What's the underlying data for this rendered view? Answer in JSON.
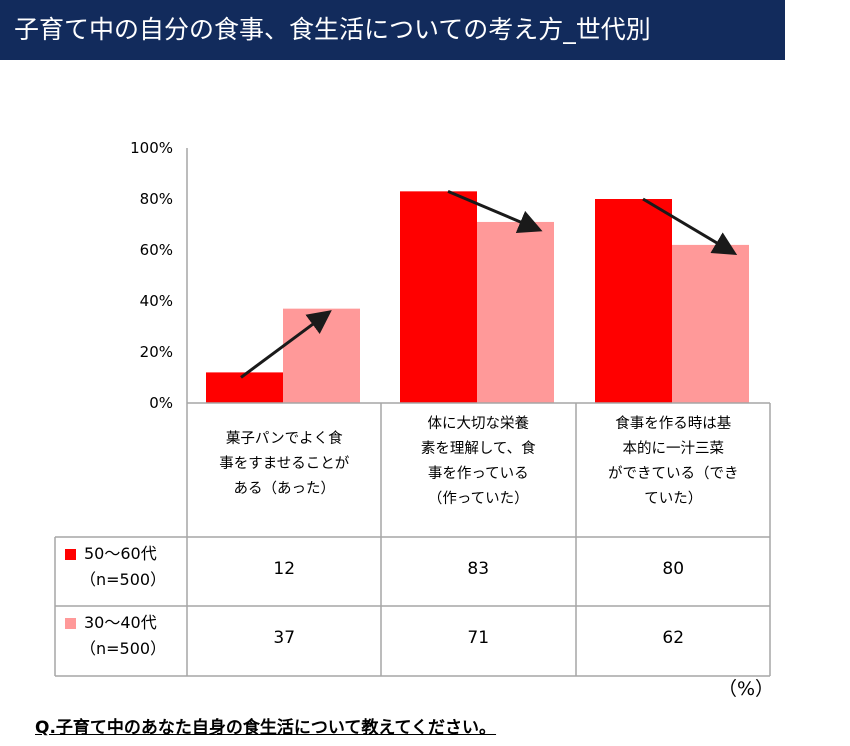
{
  "title": "子育て中の自分の食事、食生活についての考え方_世代別",
  "colors": {
    "title_bg": "#122b5c",
    "series1": "#ff0000",
    "series2": "#ff9999",
    "grid": "#a6a6a6",
    "arrow": "#1a1a1a"
  },
  "unit": "（%）",
  "question": "Q.子育て中のあなた自身の食生活について教えてください。",
  "table": {
    "categories": [
      [
        "菓子パンでよく食",
        "事をすませることが",
        "ある（あった）"
      ],
      [
        "体に大切な栄養",
        "素を理解して、食",
        "事を作っている",
        "（作っていた）"
      ],
      [
        "食事を作る時は基",
        "本的に一汁三菜",
        "ができている（でき",
        "ていた）"
      ]
    ],
    "rows": [
      {
        "label_lines": [
          "50～60代",
          "（n=500）"
        ],
        "values": [
          "12",
          "83",
          "80"
        ]
      },
      {
        "label_lines": [
          "30～40代",
          "（n=500）"
        ],
        "values": [
          "37",
          "71",
          "62"
        ]
      }
    ]
  },
  "chart_data": {
    "type": "bar",
    "categories": [
      "菓子パンでよく食事をすませることがある（あった）",
      "体に大切な栄養素を理解して、食事を作っている（作っていた）",
      "食事を作る時は基本的に一汁三菜ができている（できていた）"
    ],
    "series": [
      {
        "name": "50～60代（n=500）",
        "values": [
          12,
          83,
          80
        ],
        "color": "#ff0000"
      },
      {
        "name": "30～40代（n=500）",
        "values": [
          37,
          71,
          62
        ],
        "color": "#ff9999"
      }
    ],
    "ylim": [
      0,
      100
    ],
    "yticks": [
      "100%",
      "80%",
      "60%",
      "40%",
      "20%",
      "0%"
    ],
    "ytick_values": [
      100,
      80,
      60,
      40,
      20,
      0
    ],
    "annotations": "arrows from 50～60代 bar to 30～40代 bar in each category",
    "legend": "table rows below chart"
  }
}
